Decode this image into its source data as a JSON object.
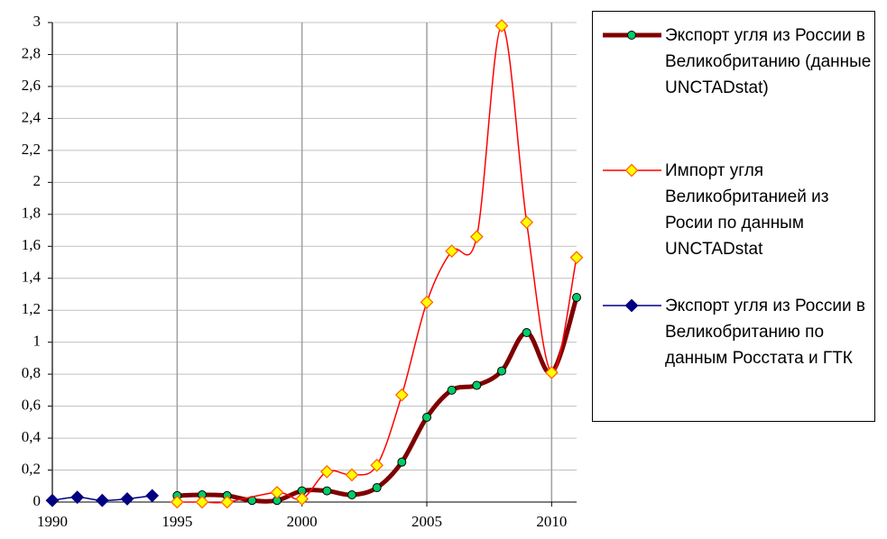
{
  "chart_data": {
    "type": "line",
    "xlim": [
      1990,
      2011
    ],
    "xticks": [
      1990,
      1995,
      2000,
      2005,
      2010
    ],
    "ylim": [
      0,
      3
    ],
    "yticks": [
      0,
      {
        "value": 0.2,
        "label": "0,2"
      },
      {
        "value": 0.4,
        "label": "0,4"
      },
      {
        "value": 0.6,
        "label": "0,6"
      },
      {
        "value": 0.8,
        "label": "0,8"
      },
      1,
      {
        "value": 1.2,
        "label": "1,2"
      },
      {
        "value": 1.4,
        "label": "1,4"
      },
      {
        "value": 1.6,
        "label": "1,6"
      },
      {
        "value": 1.8,
        "label": "1,8"
      },
      2,
      {
        "value": 2.2,
        "label": "2,2"
      },
      {
        "value": 2.4,
        "label": "2,4"
      },
      {
        "value": 2.6,
        "label": "2,6"
      },
      {
        "value": 2.8,
        "label": "2,8"
      },
      3
    ],
    "grid": true,
    "legend": "right",
    "series": [
      {
        "name": "Экспорт угля из России в Великобританию (данные UNCTADstat)",
        "color": "#7f0000",
        "marker": "circle",
        "marker_color": "#00cc66",
        "x": [
          1995,
          1996,
          1997,
          1998,
          1999,
          2000,
          2001,
          2002,
          2003,
          2004,
          2005,
          2006,
          2007,
          2008,
          2009,
          2010,
          2011
        ],
        "values": [
          0.04,
          0.045,
          0.04,
          0.01,
          0.01,
          0.07,
          0.07,
          0.045,
          0.09,
          0.25,
          0.53,
          0.7,
          0.73,
          0.82,
          1.06,
          0.81,
          1.28
        ]
      },
      {
        "name": "Импорт угля Великобританией из Росии по данным UNCTADstat",
        "color": "#ff0000",
        "marker": "diamond",
        "marker_color": "#ffff00",
        "x": [
          1995,
          1996,
          1997,
          1999,
          2000,
          2001,
          2002,
          2003,
          2004,
          2005,
          2006,
          2007,
          2008,
          2009,
          2010,
          2011
        ],
        "values": [
          0.0,
          0.0,
          0.0,
          0.06,
          0.02,
          0.19,
          0.17,
          0.23,
          0.67,
          1.25,
          1.57,
          1.66,
          2.98,
          1.75,
          0.81,
          1.53
        ]
      },
      {
        "name": "Экспорт угля из России в Великобританию по данным Росстата и ГТК",
        "color": "#000080",
        "marker": "diamond",
        "marker_color": "#000080",
        "x": [
          1990,
          1991,
          1992,
          1993,
          1994
        ],
        "values": [
          0.01,
          0.03,
          0.01,
          0.02,
          0.04
        ]
      }
    ]
  }
}
